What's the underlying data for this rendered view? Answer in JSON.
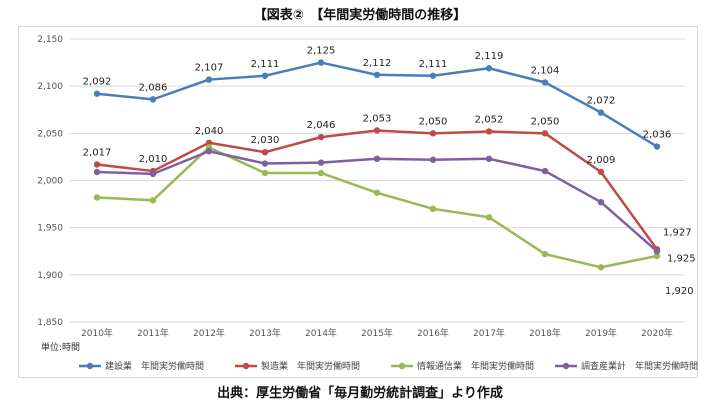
{
  "title": "【図表②　【年間実労働時間の推移】",
  "source": "出典：厚生労働省「毎月勤労統計調査」より作成",
  "chart_data": {
    "type": "line",
    "title": "【図表②　【年間実労働時間の推移】",
    "categories": [
      "2010年",
      "2011年",
      "2012年",
      "2013年",
      "2014年",
      "2015年",
      "2016年",
      "2017年",
      "2018年",
      "2019年",
      "2020年"
    ],
    "ylim": [
      1850,
      2150
    ],
    "yticks": [
      1850,
      1900,
      1950,
      2000,
      2050,
      2100,
      2150
    ],
    "ytick_labels": [
      "1,850",
      "1,900",
      "1,950",
      "2,000",
      "2,050",
      "2,100",
      "2,150"
    ],
    "unit_label": "単位:時間",
    "grid": true,
    "legend_position": "bottom",
    "series": [
      {
        "name": "建設業　年間実労働時間",
        "color": "#4a7ebb",
        "values": [
          2092,
          2086,
          2107,
          2111,
          2125,
          2112,
          2111,
          2119,
          2104,
          2072,
          2036
        ],
        "labels": [
          "2,092",
          "2,086",
          "2,107",
          "2,111",
          "2,125",
          "2,112",
          "2,111",
          "2,119",
          "2,104",
          "2,072",
          "2,036"
        ]
      },
      {
        "name": "製造業　年間実労働時間",
        "color": "#be4b48",
        "values": [
          2017,
          2010,
          2040,
          2030,
          2046,
          2053,
          2050,
          2052,
          2050,
          2009,
          1927
        ],
        "labels": [
          "2,017",
          "2,010",
          "2,040",
          "2,030",
          "2,046",
          "2,053",
          "2,050",
          "2,052",
          "2,050",
          "2,009",
          "1,927"
        ]
      },
      {
        "name": "情報通信業　年間実労働時間",
        "color": "#98b954",
        "values": [
          1982,
          1979,
          2035,
          2008,
          2008,
          1987,
          1970,
          1961,
          1922,
          1908,
          1920
        ],
        "labels": [
          null,
          null,
          null,
          null,
          null,
          null,
          null,
          null,
          null,
          null,
          "1,920"
        ]
      },
      {
        "name": "調査産業計　年間実労働時間",
        "color": "#7d60a0",
        "values": [
          2009,
          2007,
          2031,
          2018,
          2019,
          2023,
          2022,
          2023,
          2010,
          1977,
          1925
        ],
        "labels": [
          null,
          null,
          null,
          null,
          null,
          null,
          null,
          null,
          null,
          null,
          "1,925"
        ]
      }
    ]
  }
}
